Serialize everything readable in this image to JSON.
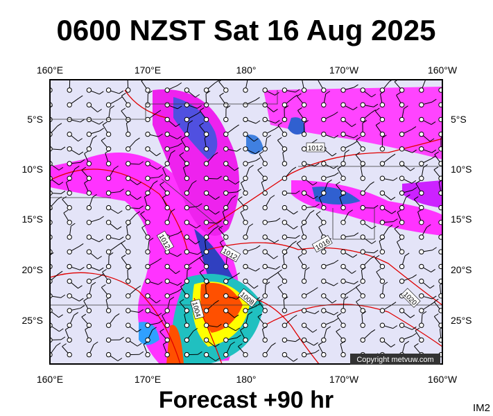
{
  "header": {
    "title": "0600 NZST Sat 16 Aug 2025"
  },
  "map": {
    "lon_labels": [
      "160°E",
      "170°E",
      "180°",
      "170°W",
      "160°W"
    ],
    "lat_labels": [
      "5°S",
      "10°S",
      "15°S",
      "20°S",
      "25°S"
    ],
    "isobar_labels": [
      "1012",
      "1012",
      "1012",
      "1016",
      "1008",
      "1004",
      "1020"
    ],
    "copyright": "Copyright metvuw.com"
  },
  "footer": {
    "text": "Forecast +90 hr",
    "code": "IM2"
  }
}
